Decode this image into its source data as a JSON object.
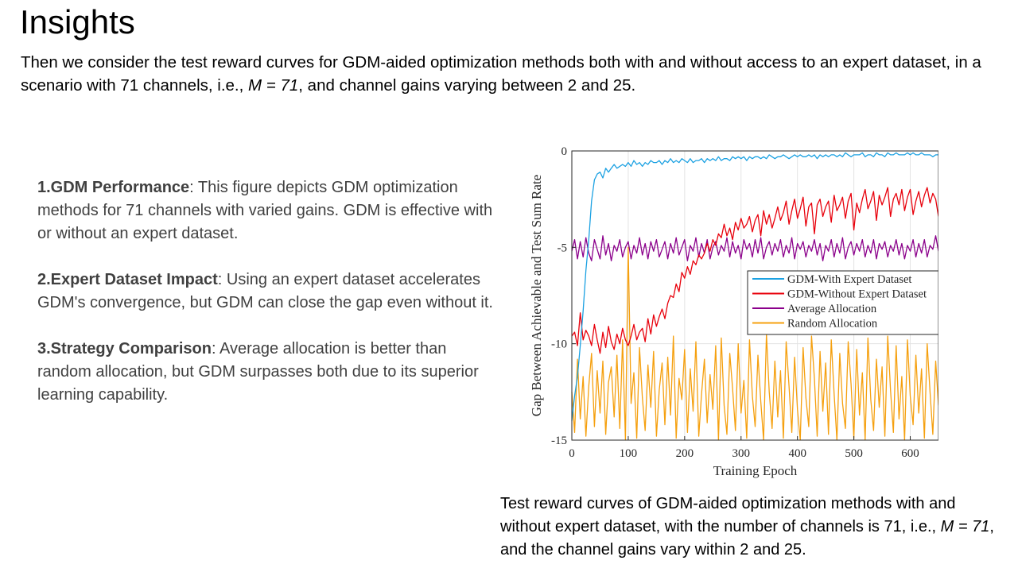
{
  "slide": {
    "title": "Insights",
    "intro": {
      "text_before": "Then we consider the test reward curves for GDM-aided optimization methods both with and without access to an expert dataset, in a scenario with 71 channels, i.e., ",
      "math": "M = 71",
      "text_after": ", and channel gains varying between 2 and 25."
    },
    "points": [
      {
        "heading": "1.GDM Performance",
        "body": ": This figure depicts GDM optimization methods for 71 channels with varied gains. GDM is effective with or without an expert dataset."
      },
      {
        "heading": "2.Expert Dataset Impact",
        "body": ": Using an expert dataset accelerates GDM's convergence, but GDM can close the gap even without it."
      },
      {
        "heading": "3.Strategy Comparison",
        "body": ": Average allocation is better than random allocation, but GDM surpasses both due to its superior learning capability."
      }
    ],
    "caption": {
      "text_before": "Test reward curves of GDM-aided optimization methods with and without expert dataset, with the number of channels is 71, i.e., ",
      "math": "M = 71",
      "text_after": ", and the channel gains vary within 2 and 25."
    }
  },
  "chart_data": {
    "type": "line",
    "title": "",
    "xlabel": "Training Epoch",
    "ylabel": "Gap Between Achievable and Test Sum Rate",
    "xlim": [
      0,
      650
    ],
    "ylim": [
      -15,
      0
    ],
    "xticks": [
      0,
      100,
      200,
      300,
      400,
      500,
      600
    ],
    "yticks": [
      0,
      -5,
      -10,
      -15
    ],
    "grid": true,
    "legend_position": "right-middle",
    "x_step": 5,
    "series": [
      {
        "name": "GDM-With Expert Dataset",
        "color": "#1BA1E2",
        "values": [
          -14,
          -12.7,
          -11.7,
          -10.1,
          -8.3,
          -6.2,
          -4.6,
          -2.6,
          -1.5,
          -1.2,
          -1.1,
          -1.4,
          -0.9,
          -1.1,
          -0.9,
          -0.7,
          -0.9,
          -0.8,
          -0.7,
          -0.8,
          -0.6,
          -0.8,
          -0.5,
          -0.7,
          -0.6,
          -0.8,
          -0.6,
          -0.7,
          -0.5,
          -0.6,
          -0.6,
          -0.5,
          -0.7,
          -0.5,
          -0.6,
          -0.4,
          -0.6,
          -0.5,
          -0.6,
          -0.4,
          -0.5,
          -0.6,
          -0.4,
          -0.6,
          -0.5,
          -0.5,
          -0.4,
          -0.6,
          -0.4,
          -0.5,
          -0.4,
          -0.5,
          -0.3,
          -0.5,
          -0.4,
          -0.4,
          -0.5,
          -0.3,
          -0.4,
          -0.3,
          -0.4,
          -0.3,
          -0.5,
          -0.3,
          -0.4,
          -0.3,
          -0.3,
          -0.4,
          -0.3,
          -0.4,
          -0.2,
          -0.3,
          -0.4,
          -0.3,
          -0.3,
          -0.2,
          -0.3,
          -0.4,
          -0.3,
          -0.2,
          -0.3,
          -0.2,
          -0.3,
          -0.3,
          -0.2,
          -0.3,
          -0.2,
          -0.4,
          -0.2,
          -0.3,
          -0.2,
          -0.3,
          -0.2,
          -0.2,
          -0.3,
          -0.2,
          -0.3,
          -0.1,
          -0.2,
          -0.3,
          -0.2,
          -0.2,
          -0.2,
          -0.1,
          -0.3,
          -0.2,
          -0.2,
          -0.3,
          -0.1,
          -0.2,
          -0.2,
          -0.3,
          -0.1,
          -0.2,
          -0.2,
          -0.1,
          -0.2,
          -0.2,
          -0.2,
          -0.1,
          -0.2,
          -0.1,
          -0.2,
          -0.2,
          -0.1,
          -0.2,
          -0.2,
          -0.2,
          -0.3,
          -0.2,
          -0.2
        ]
      },
      {
        "name": "GDM-Without Expert Dataset",
        "color": "#E8000B",
        "values": [
          -9.6,
          -9.4,
          -10.1,
          -8.4,
          -9.8,
          -9.3,
          -9.6,
          -10.1,
          -9.0,
          -9.8,
          -10.5,
          -9.4,
          -10.2,
          -9.1,
          -9.9,
          -10.3,
          -9.5,
          -10.0,
          -9.2,
          -9.8,
          -10.1,
          -9.6,
          -9.0,
          -9.8,
          -9.4,
          -9.2,
          -9.9,
          -8.7,
          -9.5,
          -8.5,
          -9.1,
          -8.6,
          -8.2,
          -8.7,
          -7.9,
          -7.5,
          -7.6,
          -6.9,
          -7.3,
          -6.3,
          -6.6,
          -6.0,
          -6.4,
          -5.7,
          -5.9,
          -5.4,
          -5.6,
          -5.3,
          -4.8,
          -5.2,
          -4.6,
          -4.9,
          -4.3,
          -4.5,
          -3.8,
          -4.4,
          -4.0,
          -4.6,
          -3.7,
          -4.1,
          -3.5,
          -4.0,
          -3.8,
          -3.4,
          -4.2,
          -3.6,
          -3.3,
          -4.4,
          -3.1,
          -3.8,
          -3.3,
          -4.0,
          -3.5,
          -2.9,
          -3.6,
          -3.2,
          -2.6,
          -3.8,
          -3.1,
          -2.5,
          -3.5,
          -3.0,
          -2.4,
          -3.9,
          -2.9,
          -2.7,
          -4.3,
          -2.8,
          -2.5,
          -3.4,
          -2.9,
          -2.6,
          -3.7,
          -2.3,
          -3.1,
          -2.8,
          -2.4,
          -3.5,
          -2.6,
          -2.2,
          -4.1,
          -2.7,
          -3.2,
          -2.5,
          -2.0,
          -3.0,
          -2.6,
          -2.1,
          -3.6,
          -2.3,
          -2.8,
          -2.4,
          -1.9,
          -3.4,
          -2.5,
          -2.2,
          -2.8,
          -2.0,
          -3.1,
          -2.4,
          -2.0,
          -3.3,
          -2.6,
          -2.1,
          -2.9,
          -2.3,
          -1.9,
          -2.7,
          -2.2,
          -2.5,
          -3.4
        ]
      },
      {
        "name": "Average Allocation",
        "color": "#8B008B",
        "values": [
          -5.2,
          -4.6,
          -5.6,
          -4.7,
          -5.5,
          -4.5,
          -5.3,
          -5.7,
          -4.6,
          -5.1,
          -5.6,
          -4.4,
          -5.4,
          -4.8,
          -5.7,
          -4.9,
          -5.2,
          -4.6,
          -5.5,
          -5.0,
          -4.7,
          -5.6,
          -4.9,
          -5.3,
          -4.5,
          -5.4,
          -4.8,
          -5.6,
          -4.7,
          -5.2,
          -4.6,
          -5.5,
          -5.1,
          -4.7,
          -5.6,
          -4.8,
          -5.3,
          -4.5,
          -5.4,
          -5.0,
          -4.6,
          -5.7,
          -4.9,
          -5.2,
          -4.5,
          -5.5,
          -4.8,
          -5.3,
          -4.6,
          -5.6,
          -5.0,
          -4.7,
          -5.4,
          -4.9,
          -5.2,
          -4.5,
          -5.5,
          -4.7,
          -5.3,
          -4.9,
          -5.6,
          -4.6,
          -5.1,
          -4.8,
          -5.5,
          -4.6,
          -5.3,
          -4.5,
          -5.6,
          -5.0,
          -4.7,
          -5.4,
          -4.8,
          -5.2,
          -4.6,
          -5.5,
          -4.9,
          -5.3,
          -4.5,
          -5.6,
          -4.8,
          -5.1,
          -4.7,
          -5.5,
          -4.9,
          -5.2,
          -4.6,
          -5.4,
          -4.8,
          -5.7,
          -4.9,
          -5.2,
          -4.6,
          -5.5,
          -4.8,
          -5.3,
          -4.5,
          -5.6,
          -5.0,
          -4.7,
          -5.4,
          -4.8,
          -5.2,
          -4.6,
          -5.5,
          -4.9,
          -5.3,
          -4.6,
          -5.6,
          -4.8,
          -5.1,
          -4.7,
          -5.5,
          -4.9,
          -5.2,
          -4.6,
          -5.4,
          -4.8,
          -5.6,
          -4.9,
          -5.2,
          -4.6,
          -5.5,
          -4.8,
          -5.3,
          -4.6,
          -5.5,
          -4.9,
          -5.1,
          -4.4,
          -5.2
        ]
      },
      {
        "name": "Random Allocation",
        "color": "#F5A00F",
        "values": [
          -12.5,
          -14.6,
          -10.8,
          -13.9,
          -11.7,
          -14.8,
          -12.2,
          -10.5,
          -14.3,
          -11.4,
          -13.6,
          -10.9,
          -14.7,
          -12.0,
          -11.2,
          -13.8,
          -10.6,
          -14.4,
          -9.8,
          -15.0,
          -5.0,
          -13.1,
          -11.5,
          -14.9,
          -10.2,
          -12.8,
          -14.5,
          -11.1,
          -13.3,
          -10.4,
          -14.8,
          -12.4,
          -11.0,
          -14.2,
          -10.7,
          -13.7,
          -9.6,
          -14.9,
          -11.8,
          -12.9,
          -10.3,
          -14.6,
          -11.3,
          -13.5,
          -9.9,
          -14.8,
          -12.6,
          -10.8,
          -14.1,
          -11.6,
          -13.4,
          -10.1,
          -15.0,
          -9.7,
          -13.2,
          -14.7,
          -10.5,
          -12.3,
          -14.5,
          -10.0,
          -13.6,
          -11.9,
          -14.9,
          -9.8,
          -12.7,
          -14.3,
          -10.6,
          -13.0,
          -15.0,
          -9.5,
          -12.5,
          -14.4,
          -10.9,
          -13.8,
          -11.4,
          -14.9,
          -9.9,
          -12.2,
          -14.6,
          -10.7,
          -13.4,
          -15.0,
          -10.2,
          -12.8,
          -14.3,
          -9.6,
          -11.8,
          -14.8,
          -10.4,
          -13.5,
          -11.0,
          -14.7,
          -9.8,
          -12.6,
          -15.0,
          -10.5,
          -13.1,
          -14.4,
          -9.9,
          -12.1,
          -14.9,
          -10.3,
          -13.7,
          -11.5,
          -15.0,
          -9.7,
          -12.9,
          -14.5,
          -10.8,
          -13.3,
          -11.2,
          -14.8,
          -9.6,
          -12.4,
          -14.6,
          -10.1,
          -13.9,
          -11.7,
          -15.0,
          -9.8,
          -12.7,
          -14.2,
          -10.6,
          -13.6,
          -11.3,
          -14.9,
          -10.0,
          -12.5,
          -14.7,
          -10.9,
          -13.2
        ]
      }
    ]
  }
}
